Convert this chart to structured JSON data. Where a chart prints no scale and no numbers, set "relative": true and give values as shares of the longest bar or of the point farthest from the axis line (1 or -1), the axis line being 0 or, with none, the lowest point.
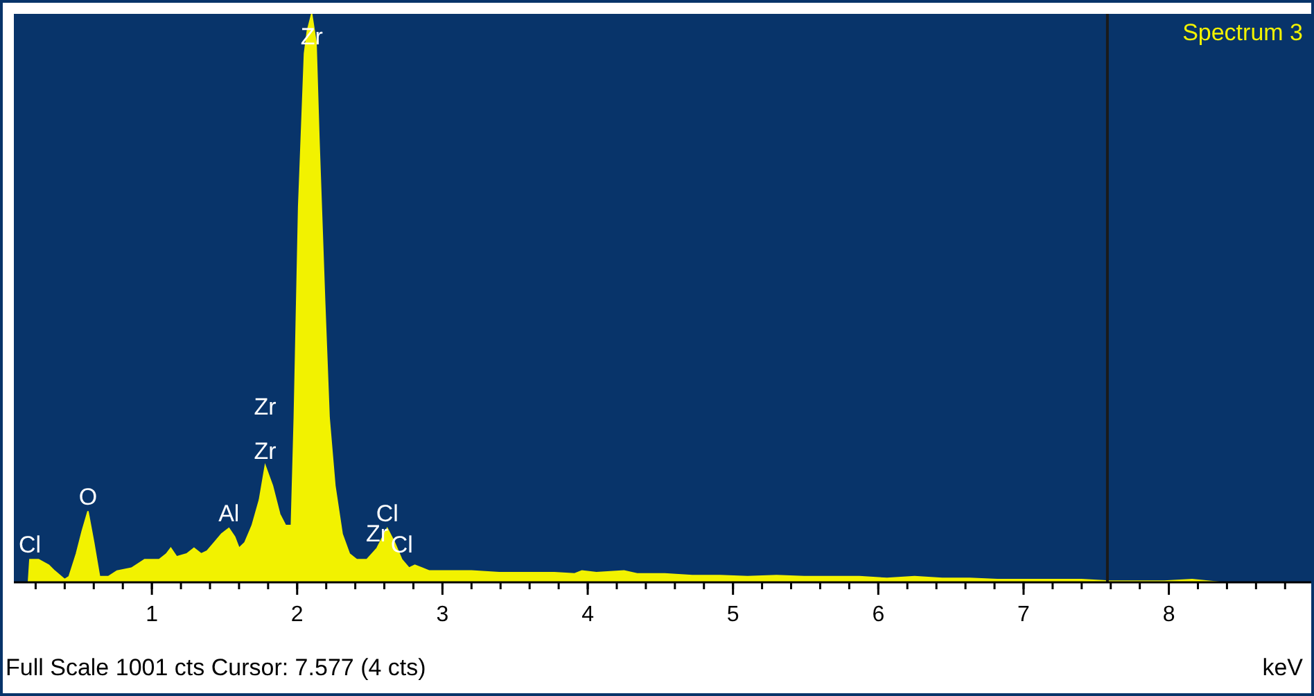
{
  "chart_data": {
    "type": "area",
    "relative": true,
    "xlabel": "keV",
    "legend": "top right",
    "annotations": [
      "Full Scale 1001 cts Cursor: 7.577  (4 cts)",
      {
        "text": "Cl",
        "x": 0.16,
        "y": 0.04
      },
      {
        "text": "O",
        "x": 0.56,
        "y": 0.125
      },
      {
        "text": "Al",
        "x": 1.53,
        "y": 0.095
      },
      {
        "text": "Zr",
        "x": 1.78,
        "y": 0.205
      },
      {
        "text": "Zr",
        "x": 1.78,
        "y": 0.205
      },
      {
        "text": "Zr",
        "x": 2.1,
        "y": 1
      },
      {
        "text": "Cl",
        "x": 2.62,
        "y": 0.095
      },
      {
        "text": "Zr",
        "x": 2.55,
        "y": 0.06
      },
      {
        "text": "Cl",
        "x": 2.72,
        "y": 0.04
      }
    ],
    "ref_lines": [
      {
        "axis": "x",
        "value": 7.577,
        "color": "#1a1a1a"
      }
    ],
    "xlim": [
      0.05,
      8.98
    ],
    "xticks": [
      {
        "value": 0.2,
        "label": null
      },
      {
        "value": 0.4,
        "label": null
      },
      {
        "value": 0.6,
        "label": null
      },
      {
        "value": 0.8,
        "label": null
      },
      1,
      {
        "value": 1.2,
        "label": null
      },
      {
        "value": 1.4,
        "label": null
      },
      {
        "value": 1.6,
        "label": null
      },
      {
        "value": 1.8,
        "label": null
      },
      2,
      {
        "value": 2.2,
        "label": null
      },
      {
        "value": 2.4,
        "label": null
      },
      {
        "value": 2.6,
        "label": null
      },
      {
        "value": 2.8,
        "label": null
      },
      3,
      {
        "value": 3.2,
        "label": null
      },
      {
        "value": 3.4,
        "label": null
      },
      {
        "value": 3.6,
        "label": null
      },
      {
        "value": 3.8,
        "label": null
      },
      4,
      {
        "value": 4.2,
        "label": null
      },
      {
        "value": 4.4,
        "label": null
      },
      {
        "value": 4.6,
        "label": null
      },
      {
        "value": 4.8,
        "label": null
      },
      5,
      {
        "value": 5.2,
        "label": null
      },
      {
        "value": 5.4,
        "label": null
      },
      {
        "value": 5.6,
        "label": null
      },
      {
        "value": 5.8,
        "label": null
      },
      6,
      {
        "value": 6.2,
        "label": null
      },
      {
        "value": 6.4,
        "label": null
      },
      {
        "value": 6.6,
        "label": null
      },
      {
        "value": 6.8,
        "label": null
      },
      7,
      {
        "value": 7.2,
        "label": null
      },
      {
        "value": 7.4,
        "label": null
      },
      {
        "value": 7.6,
        "label": null
      },
      {
        "value": 7.8,
        "label": null
      },
      8,
      {
        "value": 8.2,
        "label": null
      },
      {
        "value": 8.4,
        "label": null
      },
      {
        "value": 8.6,
        "label": null
      },
      {
        "value": 8.8,
        "label": null
      }
    ],
    "series": [
      {
        "name": "Spectrum 3",
        "color": "#f2f200",
        "x": [
          0.15,
          0.16,
          0.22,
          0.29,
          0.33,
          0.4,
          0.43,
          0.48,
          0.52,
          0.56,
          0.6,
          0.64,
          0.7,
          0.76,
          0.86,
          0.95,
          1.05,
          1.1,
          1.13,
          1.17,
          1.24,
          1.29,
          1.34,
          1.38,
          1.43,
          1.48,
          1.53,
          1.57,
          1.6,
          1.64,
          1.69,
          1.74,
          1.78,
          1.83,
          1.88,
          1.92,
          1.96,
          1.98,
          2.01,
          2.05,
          2.07,
          2.1,
          2.13,
          2.15,
          2.19,
          2.22,
          2.26,
          2.31,
          2.36,
          2.41,
          2.48,
          2.55,
          2.62,
          2.67,
          2.72,
          2.77,
          2.81,
          2.86,
          2.91,
          3.01,
          3.2,
          3.39,
          3.58,
          3.77,
          3.91,
          3.96,
          4.06,
          4.25,
          4.34,
          4.53,
          4.72,
          4.91,
          5.1,
          5.3,
          5.49,
          5.68,
          5.87,
          6.06,
          6.25,
          6.44,
          6.63,
          6.82,
          7.01,
          7.2,
          7.4,
          7.59,
          7.78,
          7.97,
          8.16,
          8.35,
          8.98
        ],
        "values": [
          0,
          0.04,
          0.04,
          0.03,
          0.02,
          0.005,
          0.01,
          0.05,
          0.09,
          0.125,
          0.07,
          0.01,
          0.01,
          0.02,
          0.025,
          0.04,
          0.04,
          0.05,
          0.06,
          0.045,
          0.05,
          0.06,
          0.05,
          0.055,
          0.07,
          0.085,
          0.095,
          0.08,
          0.06,
          0.07,
          0.1,
          0.145,
          0.205,
          0.17,
          0.12,
          0.1,
          0.1,
          0.29,
          0.66,
          0.93,
          0.97,
          1,
          0.95,
          0.78,
          0.49,
          0.29,
          0.17,
          0.085,
          0.05,
          0.04,
          0.04,
          0.06,
          0.095,
          0.07,
          0.04,
          0.025,
          0.03,
          0.025,
          0.02,
          0.02,
          0.02,
          0.017,
          0.017,
          0.017,
          0.015,
          0.02,
          0.017,
          0.02,
          0.015,
          0.015,
          0.012,
          0.012,
          0.01,
          0.012,
          0.01,
          0.01,
          0.01,
          0.007,
          0.01,
          0.007,
          0.007,
          0.005,
          0.005,
          0.005,
          0.005,
          0.002,
          0.002,
          0.002,
          0.005,
          0,
          0
        ]
      }
    ]
  }
}
